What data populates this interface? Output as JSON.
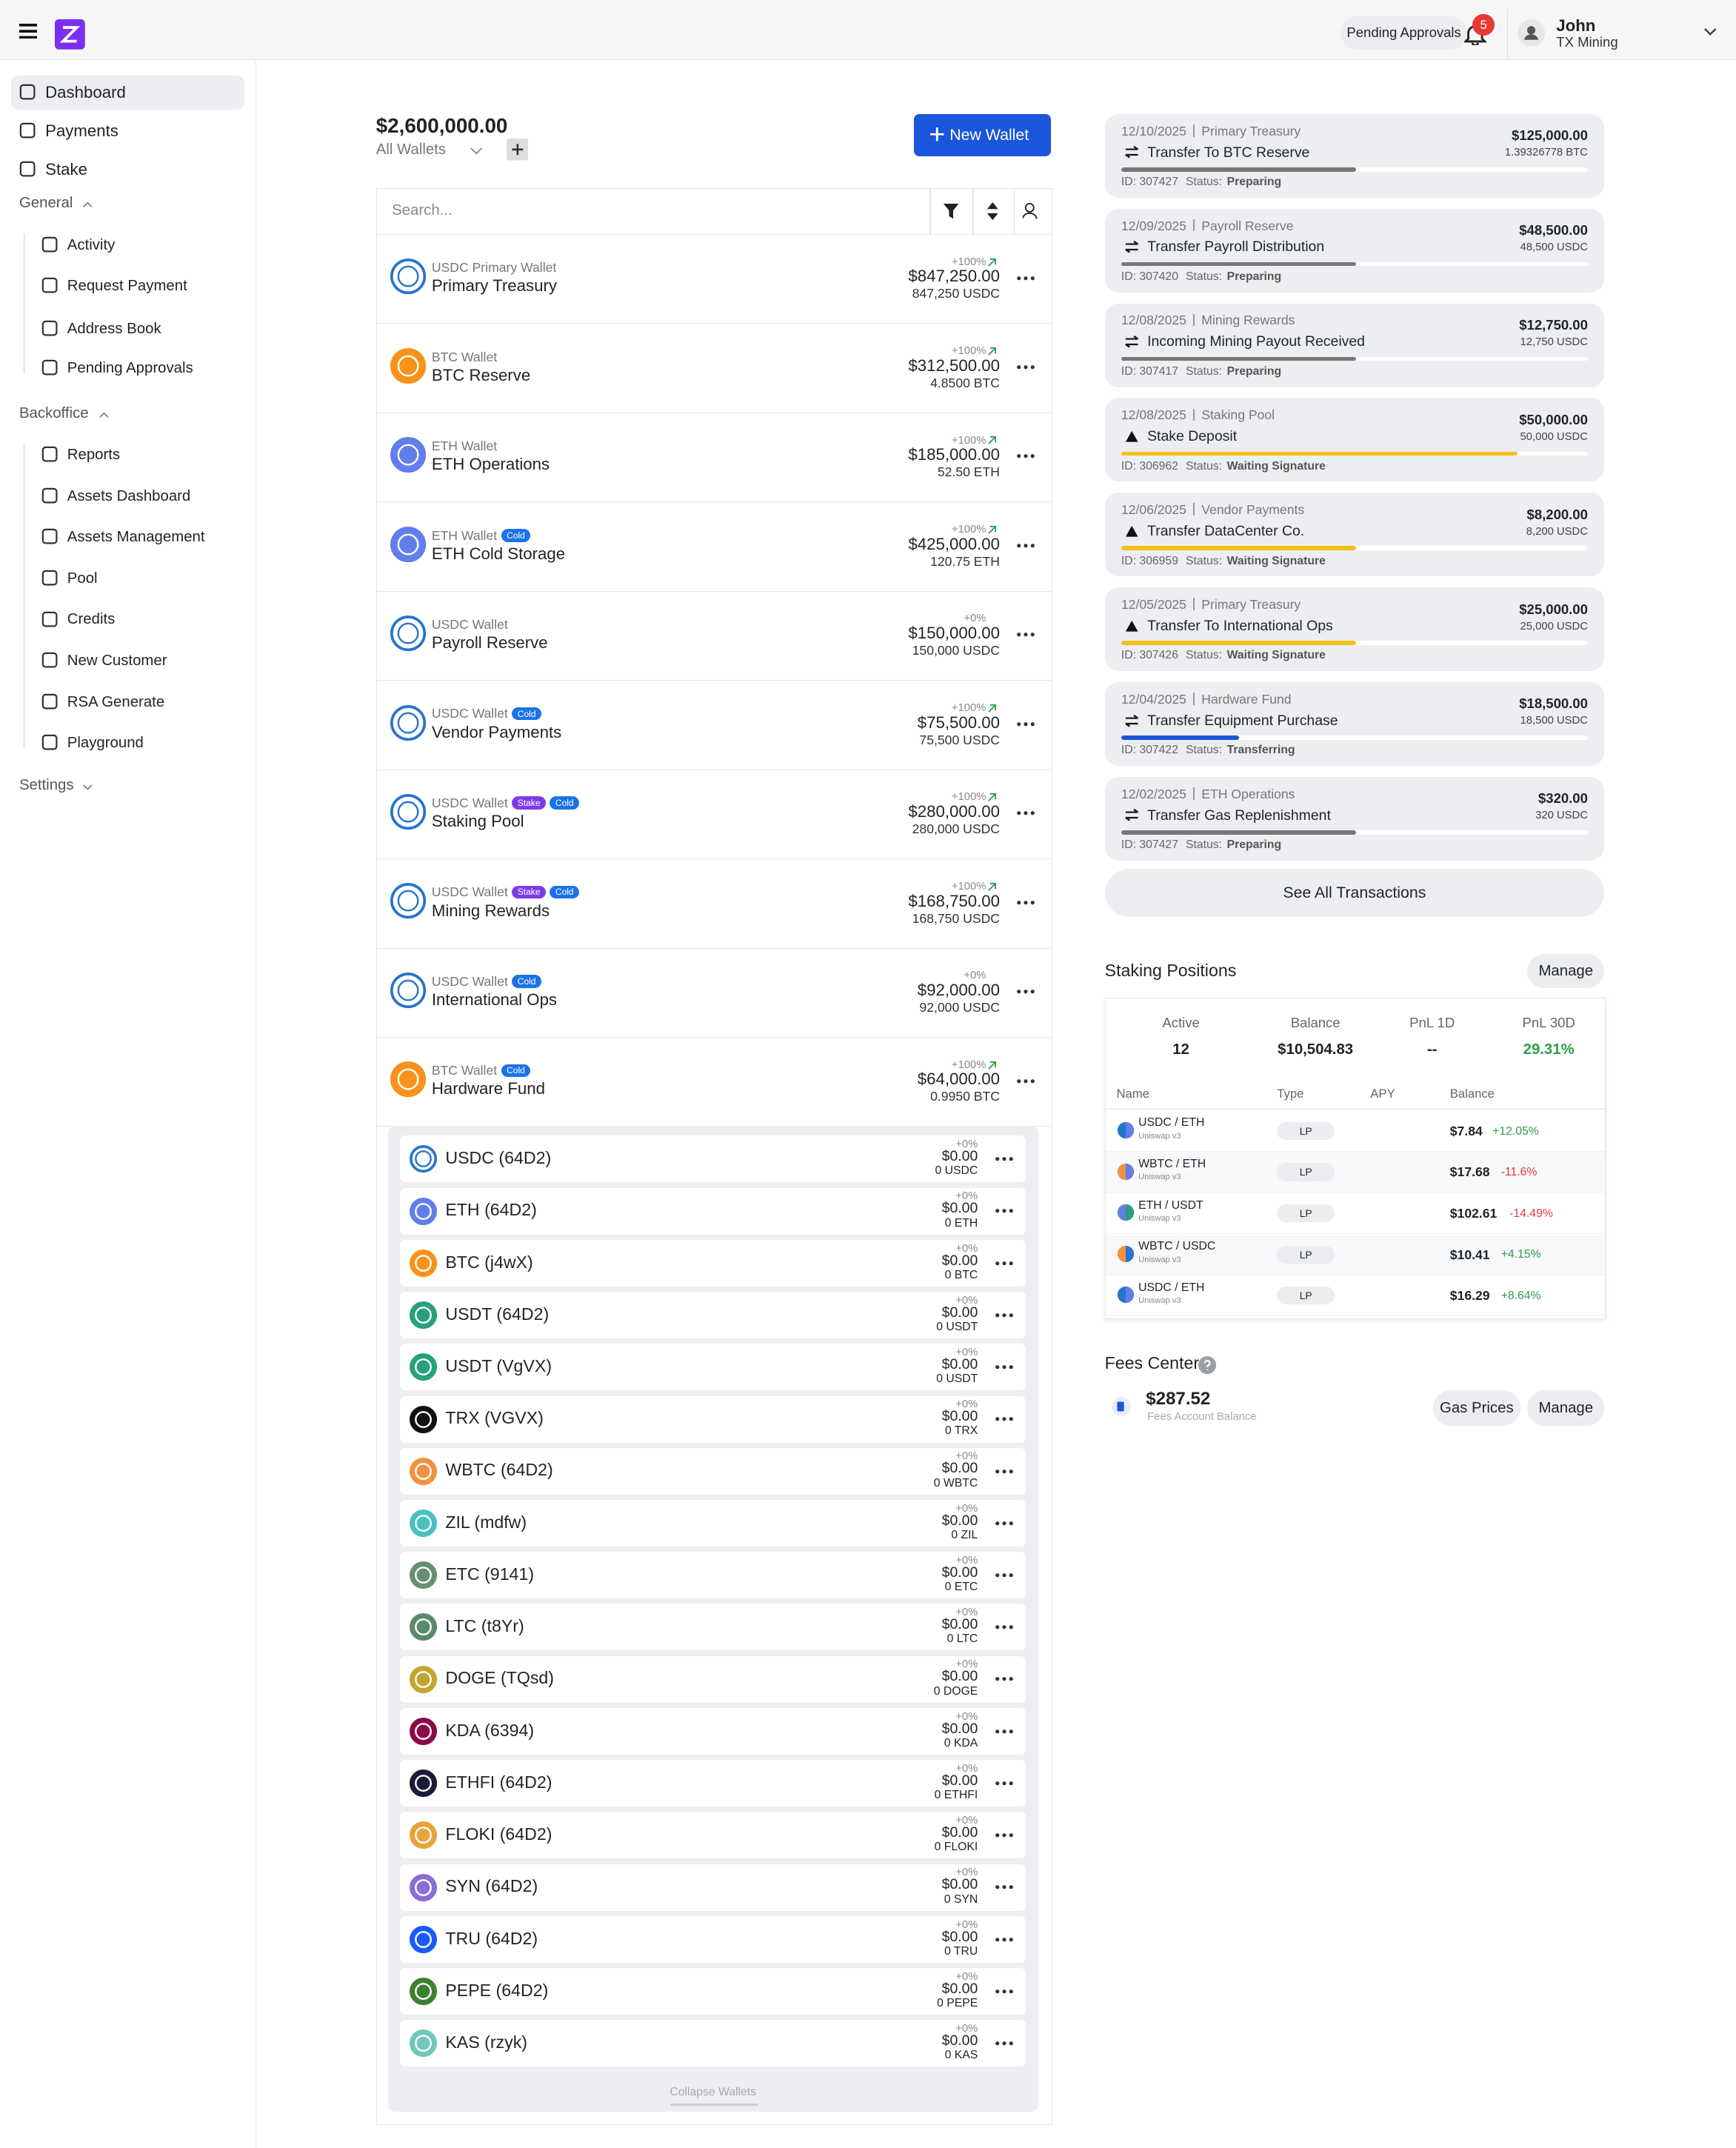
{
  "header": {
    "pending_approvals": "Pending Approvals",
    "badge": "5",
    "user_name": "John",
    "org": "TX Mining"
  },
  "sidebar": {
    "top": [
      "Dashboard",
      "Payments",
      "Stake"
    ],
    "sections": [
      {
        "title": "General",
        "items": [
          "Activity",
          "Request Payment",
          "Address Book",
          "Pending Approvals"
        ]
      },
      {
        "title": "Backoffice",
        "items": [
          "Reports",
          "Assets Dashboard",
          "Assets Management",
          "Pool",
          "Credits",
          "New Customer",
          "RSA Generate",
          "Playground"
        ]
      },
      {
        "title": "Settings",
        "items": []
      }
    ]
  },
  "wallets": {
    "total": "$2,600,000.00",
    "selector": "All Wallets",
    "new_wallet": "New Wallet",
    "search": "Search...",
    "list": [
      {
        "type": "USDC Primary Wallet",
        "tags": [],
        "name": "Primary Treasury",
        "change": "+100%",
        "usd": "$847,250.00",
        "amount": "847,250 USDC",
        "coin": "USDC"
      },
      {
        "type": "BTC Wallet",
        "tags": [],
        "name": "BTC Reserve",
        "change": "+100%",
        "usd": "$312,500.00",
        "amount": "4.8500 BTC",
        "coin": "BTC"
      },
      {
        "type": "ETH Wallet",
        "tags": [],
        "name": "ETH Operations",
        "change": "+100%",
        "usd": "$185,000.00",
        "amount": "52.50 ETH",
        "coin": "ETH"
      },
      {
        "type": "ETH Wallet",
        "tags": [
          "Cold"
        ],
        "name": "ETH Cold Storage",
        "change": "+100%",
        "usd": "$425,000.00",
        "amount": "120.75 ETH",
        "coin": "ETH"
      },
      {
        "type": "USDC Wallet",
        "tags": [],
        "name": "Payroll Reserve",
        "change": "+0%",
        "usd": "$150,000.00",
        "amount": "150,000 USDC",
        "coin": "USDC"
      },
      {
        "type": "USDC Wallet",
        "tags": [
          "Cold"
        ],
        "name": "Vendor Payments",
        "change": "+100%",
        "usd": "$75,500.00",
        "amount": "75,500 USDC",
        "coin": "USDC"
      },
      {
        "type": "USDC Wallet",
        "tags": [
          "Stake",
          "Cold"
        ],
        "name": "Staking Pool",
        "change": "+100%",
        "usd": "$280,000.00",
        "amount": "280,000 USDC",
        "coin": "USDC"
      },
      {
        "type": "USDC Wallet",
        "tags": [
          "Stake",
          "Cold"
        ],
        "name": "Mining Rewards",
        "change": "+100%",
        "usd": "$168,750.00",
        "amount": "168,750 USDC",
        "coin": "USDC"
      },
      {
        "type": "USDC Wallet",
        "tags": [
          "Cold"
        ],
        "name": "International Ops",
        "change": "+0%",
        "usd": "$92,000.00",
        "amount": "92,000 USDC",
        "coin": "USDC"
      },
      {
        "type": "BTC Wallet",
        "tags": [
          "Cold"
        ],
        "name": "Hardware Fund",
        "change": "+100%",
        "usd": "$64,000.00",
        "amount": "0.9950 BTC",
        "coin": "BTC"
      }
    ],
    "assets": [
      {
        "name": "USDC (64D2)",
        "change": "+0%",
        "usd": "$0.00",
        "amount": "0 USDC"
      },
      {
        "name": "ETH (64D2)",
        "change": "+0%",
        "usd": "$0.00",
        "amount": "0 ETH"
      },
      {
        "name": "BTC (j4wX)",
        "change": "+0%",
        "usd": "$0.00",
        "amount": "0 BTC"
      },
      {
        "name": "USDT (64D2)",
        "change": "+0%",
        "usd": "$0.00",
        "amount": "0 USDT"
      },
      {
        "name": "USDT (VgVX)",
        "change": "+0%",
        "usd": "$0.00",
        "amount": "0 USDT"
      },
      {
        "name": "TRX (VGVX)",
        "change": "+0%",
        "usd": "$0.00",
        "amount": "0 TRX"
      },
      {
        "name": "WBTC (64D2)",
        "change": "+0%",
        "usd": "$0.00",
        "amount": "0 WBTC"
      },
      {
        "name": "ZIL (mdfw)",
        "change": "+0%",
        "usd": "$0.00",
        "amount": "0 ZIL"
      },
      {
        "name": "ETC (9141)",
        "change": "+0%",
        "usd": "$0.00",
        "amount": "0 ETC"
      },
      {
        "name": "LTC (t8Yr)",
        "change": "+0%",
        "usd": "$0.00",
        "amount": "0 LTC"
      },
      {
        "name": "DOGE (TQsd)",
        "change": "+0%",
        "usd": "$0.00",
        "amount": "0 DOGE"
      },
      {
        "name": "KDA (6394)",
        "change": "+0%",
        "usd": "$0.00",
        "amount": "0 KDA"
      },
      {
        "name": "ETHFI (64D2)",
        "change": "+0%",
        "usd": "$0.00",
        "amount": "0 ETHFI"
      },
      {
        "name": "FLOKI (64D2)",
        "change": "+0%",
        "usd": "$0.00",
        "amount": "0 FLOKI"
      },
      {
        "name": "SYN (64D2)",
        "change": "+0%",
        "usd": "$0.00",
        "amount": "0 SYN"
      },
      {
        "name": "TRU (64D2)",
        "change": "+0%",
        "usd": "$0.00",
        "amount": "0 TRU"
      },
      {
        "name": "PEPE (64D2)",
        "change": "+0%",
        "usd": "$0.00",
        "amount": "0 PEPE"
      },
      {
        "name": "KAS (rzyk)",
        "change": "+0%",
        "usd": "$0.00",
        "amount": "0 KAS"
      }
    ],
    "collapse": "Collapse Wallets"
  },
  "transactions": {
    "status_label": "Status:",
    "list": [
      {
        "date": "12/10/2025",
        "wallet": "Primary Treasury",
        "title": "Transfer To BTC Reserve",
        "usd": "$125,000.00",
        "amount": "1.39326778 BTC",
        "id": "ID: 307427",
        "status": "Preparing"
      },
      {
        "date": "12/09/2025",
        "wallet": "Payroll Reserve",
        "title": "Transfer Payroll Distribution",
        "usd": "$48,500.00",
        "amount": "48,500 USDC",
        "id": "ID: 307420",
        "status": "Preparing"
      },
      {
        "date": "12/08/2025",
        "wallet": "Mining Rewards",
        "title": "Incoming Mining Payout Received",
        "usd": "$12,750.00",
        "amount": "12,750 USDC",
        "id": "ID: 307417",
        "status": "Preparing"
      },
      {
        "date": "12/08/2025",
        "wallet": "Staking Pool",
        "title": "Stake Deposit",
        "usd": "$50,000.00",
        "amount": "50,000 USDC",
        "id": "ID: 306962",
        "status": "Waiting Signature"
      },
      {
        "date": "12/06/2025",
        "wallet": "Vendor Payments",
        "title": "Transfer DataCenter Co.",
        "usd": "$8,200.00",
        "amount": "8,200 USDC",
        "id": "ID: 306959",
        "status": "Waiting Signature"
      },
      {
        "date": "12/05/2025",
        "wallet": "Primary Treasury",
        "title": "Transfer To International Ops",
        "usd": "$25,000.00",
        "amount": "25,000 USDC",
        "id": "ID: 307426",
        "status": "Waiting Signature"
      },
      {
        "date": "12/04/2025",
        "wallet": "Hardware Fund",
        "title": "Transfer Equipment Purchase",
        "usd": "$18,500.00",
        "amount": "18,500 USDC",
        "id": "ID: 307422",
        "status": "Transferring"
      },
      {
        "date": "12/02/2025",
        "wallet": "ETH Operations",
        "title": "Transfer Gas Replenishment",
        "usd": "$320.00",
        "amount": "320 USDC",
        "id": "ID: 307427",
        "status": "Preparing"
      }
    ],
    "see_all": "See All Transactions"
  },
  "staking": {
    "title": "Staking Positions",
    "manage": "Manage",
    "stats": [
      {
        "label": "Active",
        "value": "12"
      },
      {
        "label": "Balance",
        "value": "$10,504.83"
      },
      {
        "label": "PnL 1D",
        "value": "--"
      },
      {
        "label": "PnL 30D",
        "value": "29.31%"
      }
    ],
    "columns": [
      "Name",
      "Type",
      "APY",
      "Balance"
    ],
    "rows": [
      {
        "pair": "USDC / ETH",
        "dex": "Uniswap v3",
        "type": "LP",
        "balance": "$7.84",
        "pnl": "+12.05%"
      },
      {
        "pair": "WBTC / ETH",
        "dex": "Uniswap v3",
        "type": "LP",
        "balance": "$17.68",
        "pnl": "-11.6%"
      },
      {
        "pair": "ETH / USDT",
        "dex": "Uniswap v3",
        "type": "LP",
        "balance": "$102.61",
        "pnl": "-14.49%"
      },
      {
        "pair": "WBTC / USDC",
        "dex": "Uniswap v3",
        "type": "LP",
        "balance": "$10.41",
        "pnl": "+4.15%"
      },
      {
        "pair": "USDC / ETH",
        "dex": "Uniswap v3",
        "type": "LP",
        "balance": "$16.29",
        "pnl": "+8.64%"
      }
    ]
  },
  "fees": {
    "title": "Fees Center",
    "balance": "$287.52",
    "caption": "Fees Account Balance",
    "buttons": [
      "Gas Prices",
      "Manage"
    ]
  }
}
